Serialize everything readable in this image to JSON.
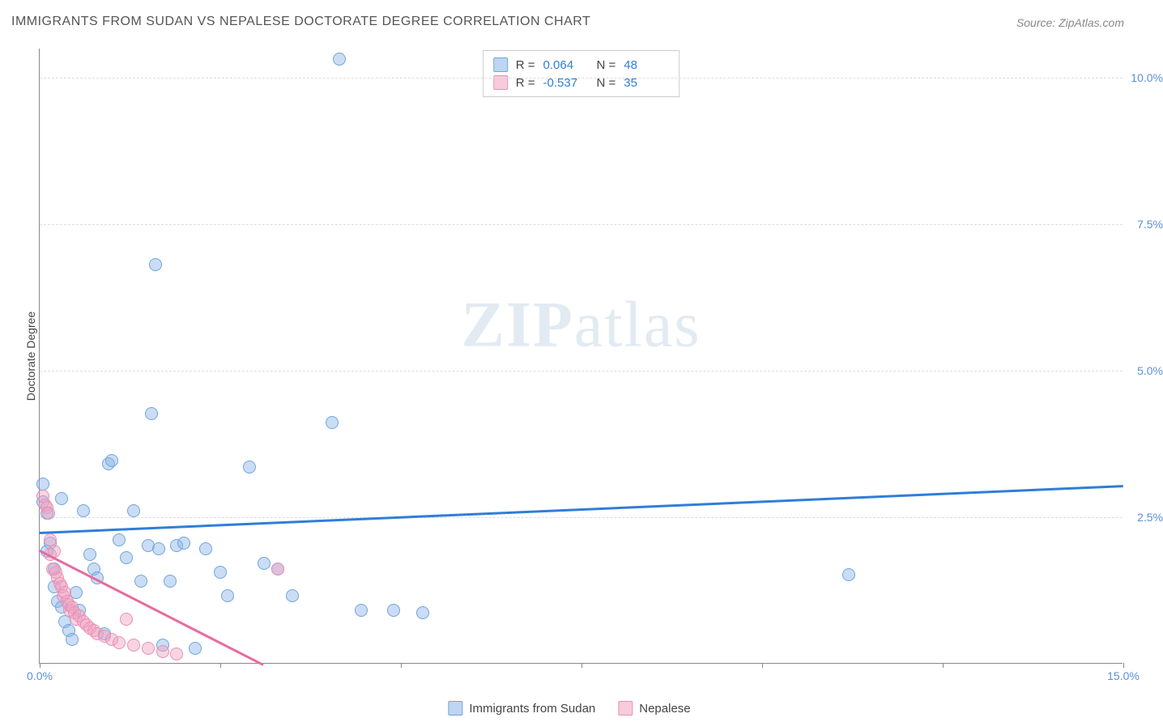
{
  "title": "IMMIGRANTS FROM SUDAN VS NEPALESE DOCTORATE DEGREE CORRELATION CHART",
  "source": "Source: ZipAtlas.com",
  "watermark_bold": "ZIP",
  "watermark_rest": "atlas",
  "y_axis_label": "Doctorate Degree",
  "chart": {
    "type": "scatter",
    "xlim": [
      0,
      15
    ],
    "ylim": [
      0,
      10.5
    ],
    "y_ticks": [
      {
        "v": 2.5,
        "label": "2.5%"
      },
      {
        "v": 5.0,
        "label": "5.0%"
      },
      {
        "v": 7.5,
        "label": "7.5%"
      },
      {
        "v": 10.0,
        "label": "10.0%"
      }
    ],
    "x_ticks": [
      0,
      2.5,
      5,
      7.5,
      10,
      12.5,
      15
    ],
    "x_tick_labels": {
      "0": "0.0%",
      "15": "15.0%"
    },
    "grid_color": "#dddddd",
    "background_color": "#ffffff",
    "axis_color": "#888888",
    "series": [
      {
        "name": "Immigrants from Sudan",
        "color_fill": "rgba(137,180,230,0.45)",
        "color_stroke": "#6fa5db",
        "trend_color": "#2f7ed8",
        "R": "0.064",
        "N": "48",
        "trend": {
          "x1": 0,
          "y1": 2.25,
          "x2": 15,
          "y2": 3.05
        },
        "points": [
          [
            0.05,
            3.05
          ],
          [
            0.05,
            2.75
          ],
          [
            0.1,
            2.55
          ],
          [
            0.15,
            2.05
          ],
          [
            0.2,
            1.6
          ],
          [
            0.25,
            1.05
          ],
          [
            0.3,
            0.95
          ],
          [
            0.35,
            0.7
          ],
          [
            0.4,
            0.55
          ],
          [
            0.45,
            0.4
          ],
          [
            0.1,
            1.9
          ],
          [
            0.2,
            1.3
          ],
          [
            0.6,
            2.6
          ],
          [
            0.7,
            1.85
          ],
          [
            0.75,
            1.6
          ],
          [
            0.8,
            1.45
          ],
          [
            0.9,
            0.5
          ],
          [
            0.95,
            3.4
          ],
          [
            1.0,
            3.45
          ],
          [
            1.1,
            2.1
          ],
          [
            1.2,
            1.8
          ],
          [
            1.3,
            2.6
          ],
          [
            1.4,
            1.4
          ],
          [
            1.5,
            2.0
          ],
          [
            1.55,
            4.25
          ],
          [
            1.6,
            6.8
          ],
          [
            1.65,
            1.95
          ],
          [
            1.7,
            0.3
          ],
          [
            1.8,
            1.4
          ],
          [
            1.9,
            2.0
          ],
          [
            2.0,
            2.05
          ],
          [
            2.15,
            0.25
          ],
          [
            2.3,
            1.95
          ],
          [
            2.5,
            1.55
          ],
          [
            2.6,
            1.15
          ],
          [
            2.9,
            3.35
          ],
          [
            3.1,
            1.7
          ],
          [
            3.3,
            1.6
          ],
          [
            3.5,
            1.15
          ],
          [
            4.05,
            4.1
          ],
          [
            4.15,
            10.3
          ],
          [
            4.45,
            0.9
          ],
          [
            4.9,
            0.9
          ],
          [
            5.3,
            0.85
          ],
          [
            11.2,
            1.5
          ],
          [
            0.5,
            1.2
          ],
          [
            0.55,
            0.9
          ],
          [
            0.3,
            2.8
          ]
        ]
      },
      {
        "name": "Nepalese",
        "color_fill": "rgba(240,160,190,0.45)",
        "color_stroke": "#e890b5",
        "trend_color": "#e86aa0",
        "R": "-0.537",
        "N": "35",
        "trend": {
          "x1": 0,
          "y1": 1.95,
          "x2": 3.1,
          "y2": 0.0
        },
        "points": [
          [
            0.05,
            2.85
          ],
          [
            0.08,
            2.7
          ],
          [
            0.1,
            2.65
          ],
          [
            0.12,
            2.55
          ],
          [
            0.15,
            2.1
          ],
          [
            0.15,
            1.85
          ],
          [
            0.18,
            1.6
          ],
          [
            0.2,
            1.9
          ],
          [
            0.22,
            1.55
          ],
          [
            0.25,
            1.45
          ],
          [
            0.28,
            1.35
          ],
          [
            0.3,
            1.3
          ],
          [
            0.32,
            1.15
          ],
          [
            0.35,
            1.2
          ],
          [
            0.38,
            1.05
          ],
          [
            0.4,
            1.0
          ],
          [
            0.42,
            0.9
          ],
          [
            0.45,
            0.95
          ],
          [
            0.48,
            0.85
          ],
          [
            0.5,
            0.75
          ],
          [
            0.55,
            0.8
          ],
          [
            0.6,
            0.7
          ],
          [
            0.65,
            0.65
          ],
          [
            0.7,
            0.6
          ],
          [
            0.75,
            0.55
          ],
          [
            0.8,
            0.5
          ],
          [
            0.9,
            0.45
          ],
          [
            1.0,
            0.4
          ],
          [
            1.1,
            0.35
          ],
          [
            1.2,
            0.75
          ],
          [
            1.3,
            0.3
          ],
          [
            1.5,
            0.25
          ],
          [
            1.7,
            0.2
          ],
          [
            1.9,
            0.15
          ],
          [
            3.3,
            1.6
          ]
        ]
      }
    ],
    "legend_labels": {
      "R": "R =",
      "N": "N ="
    }
  },
  "bottom_legend": {
    "series1": "Immigrants from Sudan",
    "series2": "Nepalese"
  }
}
